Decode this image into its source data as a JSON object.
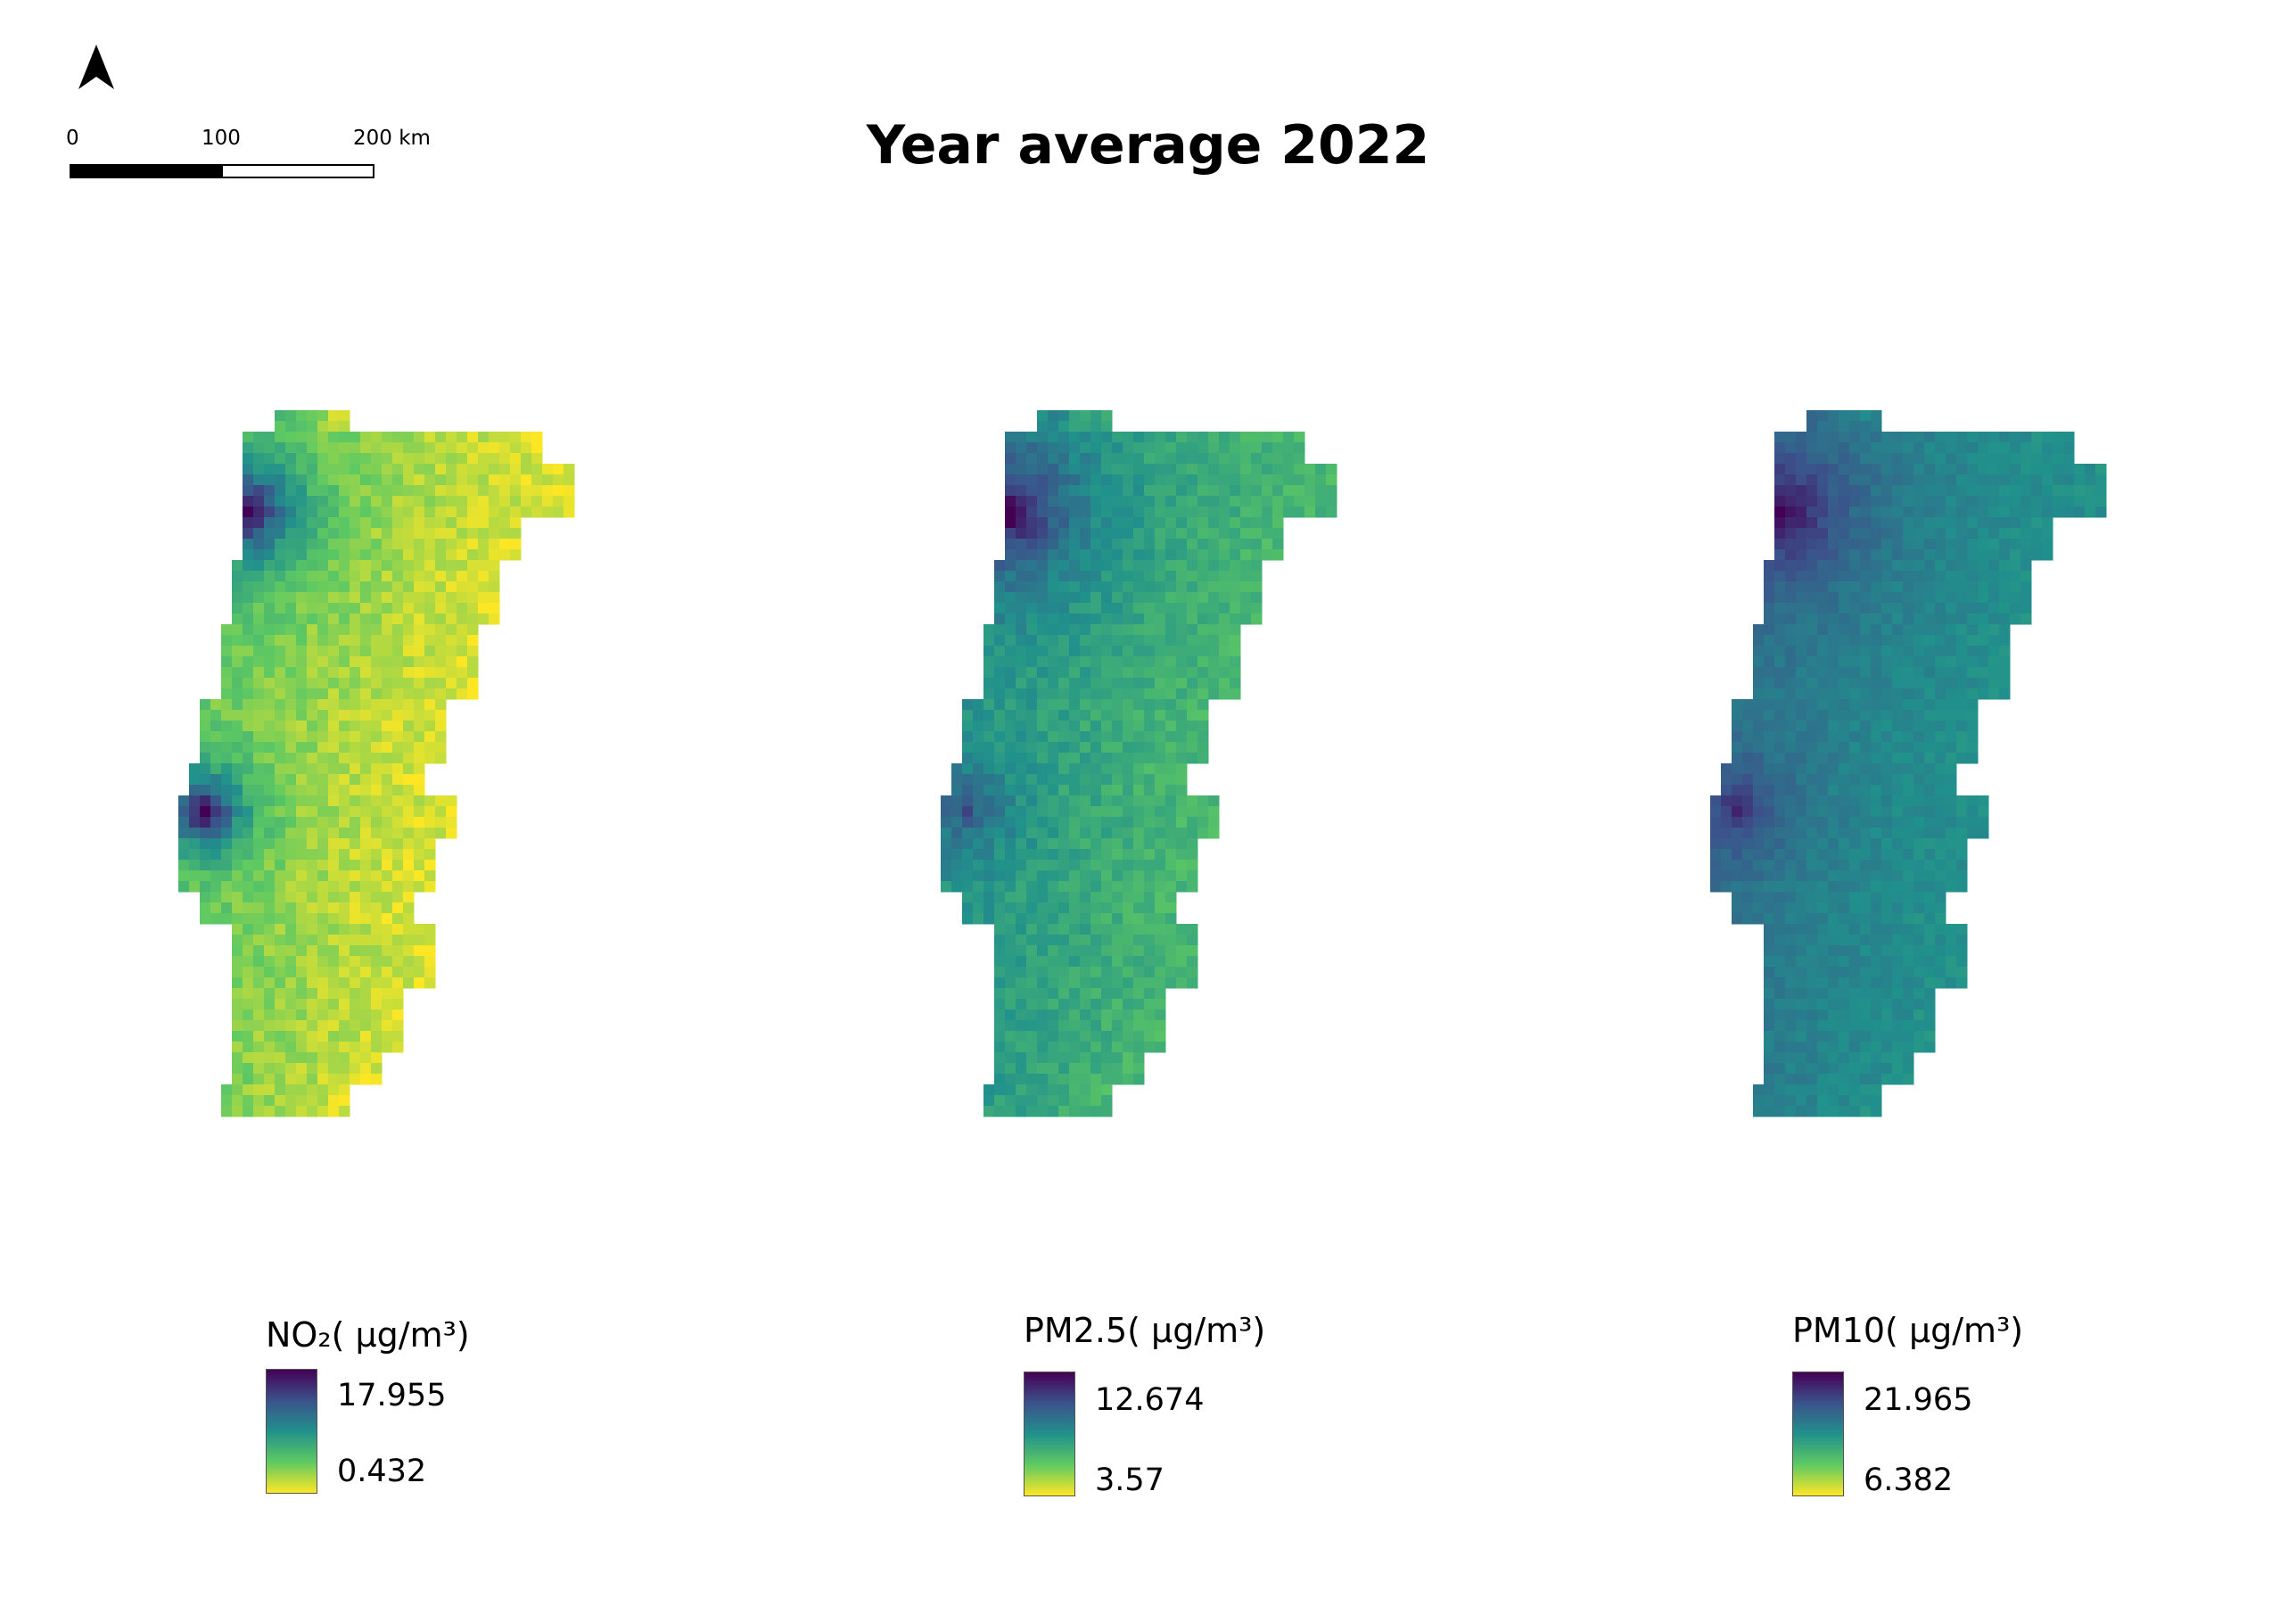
{
  "title": "Year average 2022",
  "north_arrow": {
    "icon": "north-arrow-icon"
  },
  "scale_bar": {
    "labels": [
      "0",
      "100",
      "200 km"
    ]
  },
  "maps": [
    {
      "id": "no2",
      "field": "NO₂",
      "colorscale": "viridis"
    },
    {
      "id": "pm25",
      "field": "PM2.5",
      "colorscale": "viridis"
    },
    {
      "id": "pm10",
      "field": "PM10",
      "colorscale": "viridis"
    }
  ],
  "legends": [
    {
      "title": "NO₂( μg/m³)",
      "max": "17.955",
      "min": "0.432"
    },
    {
      "title": "PM2.5( μg/m³)",
      "max": "12.674",
      "min": "3.57"
    },
    {
      "title": "PM10( μg/m³)",
      "max": "21.965",
      "min": "6.382"
    }
  ]
}
